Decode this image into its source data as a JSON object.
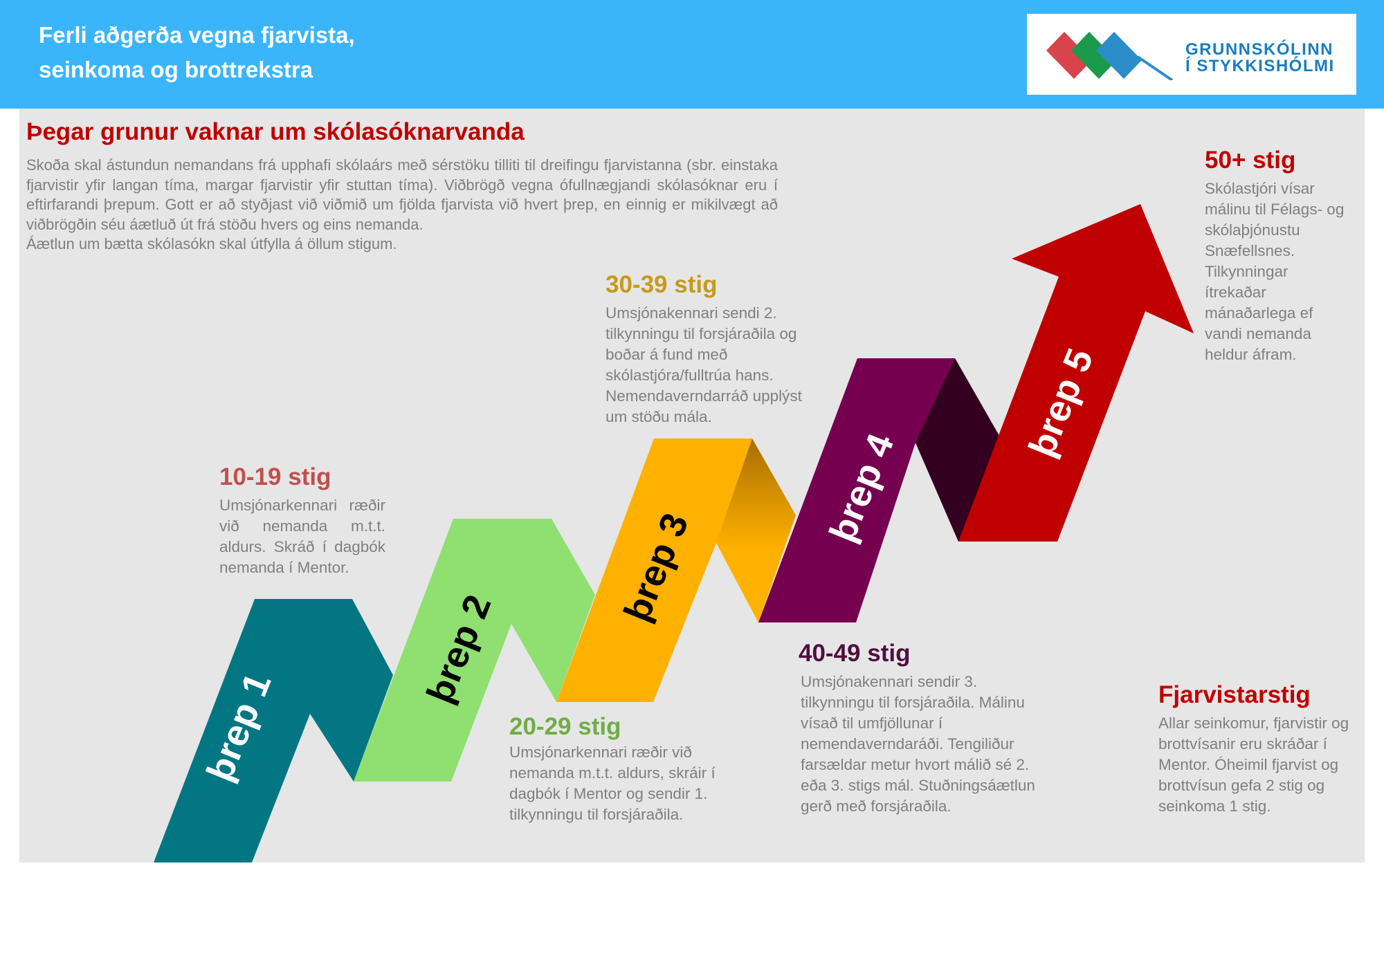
{
  "header": {
    "title_line1": "Ferli aðgerða vegna fjarvista,",
    "title_line2": "seinkoma og brottrekstra",
    "logo_line1": "GRUNNSKÓLINN",
    "logo_line2": "Í STYKKISHÓLMI"
  },
  "intro": {
    "title": "Þegar grunur vaknar um skólasóknarvanda",
    "text": "Skoða skal ástundun nemandans frá upphafi skólaárs með sérstöku tilliti til dreifingu fjarvistanna (sbr. einstaka fjarvistir yfir langan tíma, margar fjarvistir yfir stuttan tíma). Viðbrögð vegna ófullnægjandi skólasóknar eru í eftirfarandi þrepum. Gott er að styðjast við viðmið um fjölda fjarvista við hvert þrep, en einnig er mikilvægt að viðbrögðin séu áætluð út frá stöðu hvers og eins nemanda.",
    "text_last": "Áætlun um bætta skólasókn skal útfylla á öllum stigum."
  },
  "steps": [
    {
      "label": "þrep 1",
      "range": "10-19 stig",
      "desc": "Umsjónarkennari ræðir við nemanda m.t.t. aldurs. Skráð í dagbók nemanda í Mentor."
    },
    {
      "label": "þrep 2",
      "range": "20-29 stig",
      "desc": "Umsjónarkennari ræðir við nemanda m.t.t. aldurs, skráir í dagbók í Mentor og sendir 1. tilkynningu til forsjáraðila."
    },
    {
      "label": "þrep 3",
      "range": "30-39 stig",
      "desc": "Umsjónakennari sendi 2. tilkynningu til forsjáraðila og boðar á fund með skólastjóra/fulltrúa hans. Nemendaverndarráð upplýst um stöðu mála."
    },
    {
      "label": "þrep 4",
      "range": "40-49 stig",
      "desc": "Umsjónakennari sendir 3. tilkynningu til forsjáraðila. Málinu vísað til umfjöllunar í nemendaverndaráði. Tengiliður farsældar metur hvort málið sé 2. eða 3. stigs mál. Stuðningsáætlun gerð með forsjáraðila."
    },
    {
      "label": "þrep 5",
      "range": "50+ stig",
      "desc": "Skólastjóri vísar málinu til Félags- og skólaþjónustu Snæfellsnes. Tilkynningar ítrekaðar mánaðarlega ef vandi nemanda heldur áfram."
    }
  ],
  "summary": {
    "title": "Fjarvistarstig",
    "desc": "Allar seinkomur, fjarvistir og brottvísanir eru skráðar í Mentor. Óheimil fjarvist og brottvísun gefa 2 stig og seinkoma 1 stig."
  },
  "colors": {
    "header_bg": "#3ab5fc",
    "panel_bg": "#e6e6e6",
    "intro_title": "#c00000",
    "body_text": "#7f7f7f",
    "logo_text": "#1a7dbb",
    "logo_red": "#d9434b",
    "logo_green": "#1b9a4c",
    "logo_blue": "#2b8ec8",
    "step1": "#027783",
    "step2": "#8fe070",
    "step3": "#ffb100",
    "step4": "#760050",
    "step5": "#c00000",
    "step1_title": "#c0504d",
    "step2_title": "#70ad47",
    "step3_title": "#c59a1c",
    "step4_title": "#4f0f3f",
    "step5_title": "#c00000",
    "summary_title": "#c00000"
  }
}
